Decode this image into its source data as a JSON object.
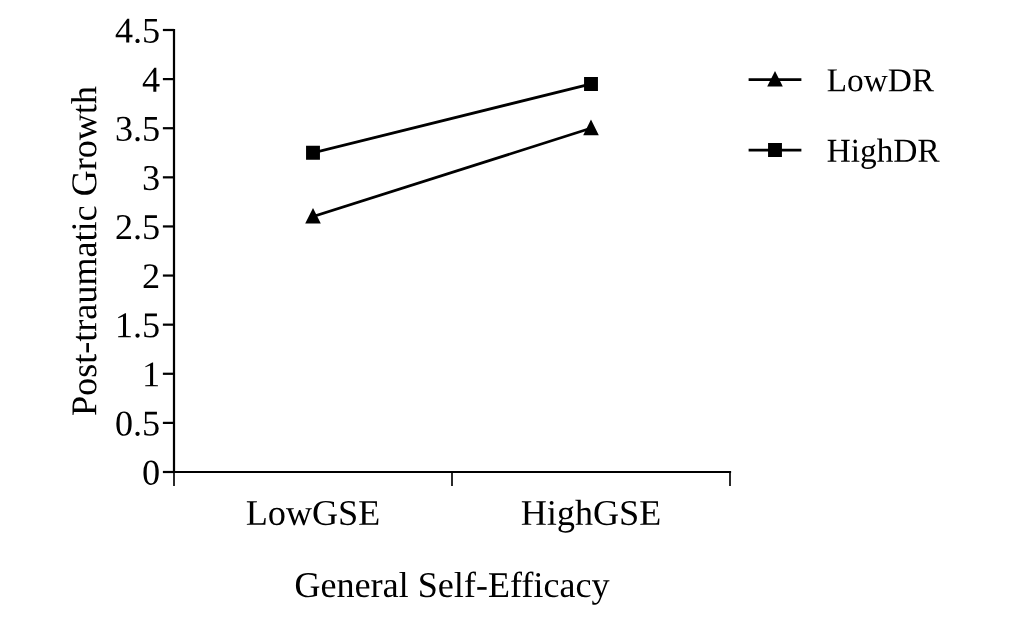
{
  "chart_data": {
    "type": "line",
    "xlabel": "General Self-Efficacy",
    "ylabel": "Post-traumatic Growth",
    "categories": [
      "LowGSE",
      "HighGSE"
    ],
    "series": [
      {
        "name": "LowDR",
        "color": "#000000",
        "values": [
          2.6,
          3.5
        ],
        "marker": "triangle"
      },
      {
        "name": "HighDR",
        "color": "#000000",
        "values": [
          3.25,
          3.95
        ],
        "marker": "square"
      }
    ],
    "ylim": [
      0,
      4.5
    ],
    "yticks": [
      0,
      0.5,
      1,
      1.5,
      2,
      2.5,
      3,
      3.5,
      4,
      4.5
    ],
    "grid": false,
    "legend": "right",
    "line_style": "solid"
  }
}
